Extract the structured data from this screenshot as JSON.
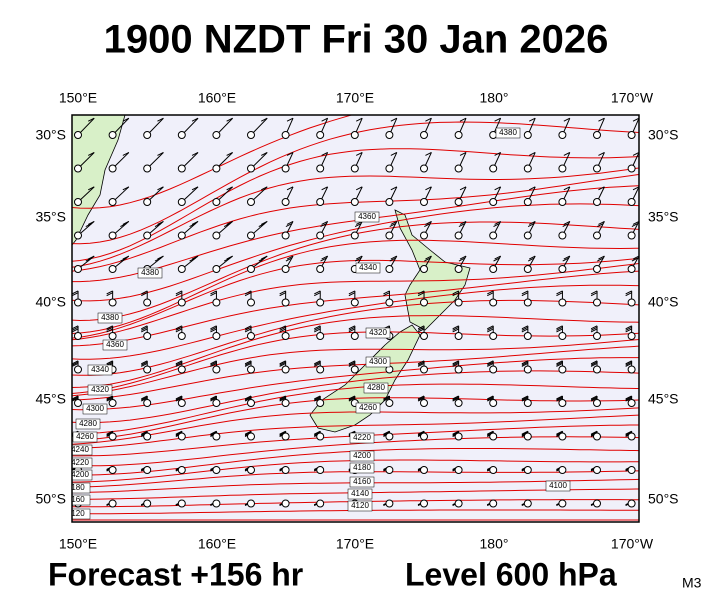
{
  "title": "1900 NZDT Fri 30 Jan 2026",
  "map": {
    "lon_labels": [
      "150°E",
      "160°E",
      "170°E",
      "180°",
      "170°W"
    ],
    "lat_labels": [
      "30°S",
      "35°S",
      "40°S",
      "45°S",
      "50°S"
    ],
    "contour_labels": [
      "4380",
      "4380",
      "4360",
      "4340",
      "4320",
      "4300",
      "4280",
      "4260",
      "4240",
      "4220",
      "4200",
      "180",
      "160",
      "120",
      "4380",
      "4360",
      "4340",
      "4320",
      "4300",
      "4280",
      "4260",
      "4220",
      "4200",
      "4180",
      "4160",
      "4140",
      "4120",
      "4100"
    ]
  },
  "footer": {
    "forecast": "Forecast +156 hr",
    "level": "Level 600 hPa",
    "model": "M3"
  }
}
